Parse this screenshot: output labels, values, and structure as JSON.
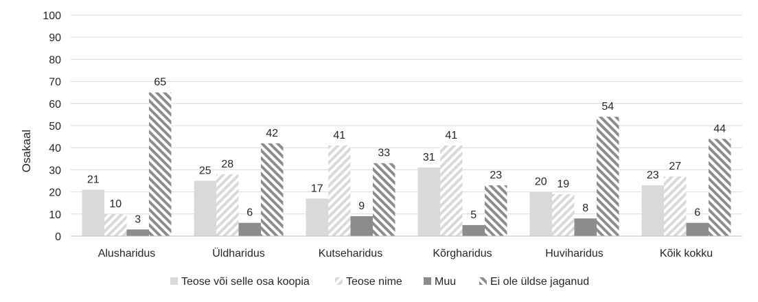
{
  "chart_data": {
    "type": "bar",
    "title": "",
    "xlabel": "",
    "ylabel": "Osakaal",
    "ylim": [
      0,
      100
    ],
    "yticks": [
      0,
      10,
      20,
      30,
      40,
      50,
      60,
      70,
      80,
      90,
      100
    ],
    "grid": true,
    "legend_position": "bottom",
    "categories": [
      "Alusharidus",
      "Üldharidus",
      "Kutseharidus",
      "Kõrgharidus",
      "Huviharidus",
      "Kõik kokku"
    ],
    "series": [
      {
        "name": "Teose või selle osa koopia",
        "values": [
          21,
          25,
          17,
          31,
          20,
          23
        ],
        "color": "#d9d9d9",
        "pattern": "solid"
      },
      {
        "name": "Teose nime",
        "values": [
          10,
          28,
          41,
          41,
          19,
          27
        ],
        "color": "#d9d9d9",
        "pattern": "light-diagonal"
      },
      {
        "name": "Muu",
        "values": [
          3,
          6,
          9,
          5,
          8,
          6
        ],
        "color": "#8c8c8c",
        "pattern": "solid"
      },
      {
        "name": "Ei ole üldse jaganud",
        "values": [
          65,
          42,
          33,
          23,
          54,
          44
        ],
        "color": "#8c8c8c",
        "pattern": "dark-diagonal"
      }
    ]
  }
}
